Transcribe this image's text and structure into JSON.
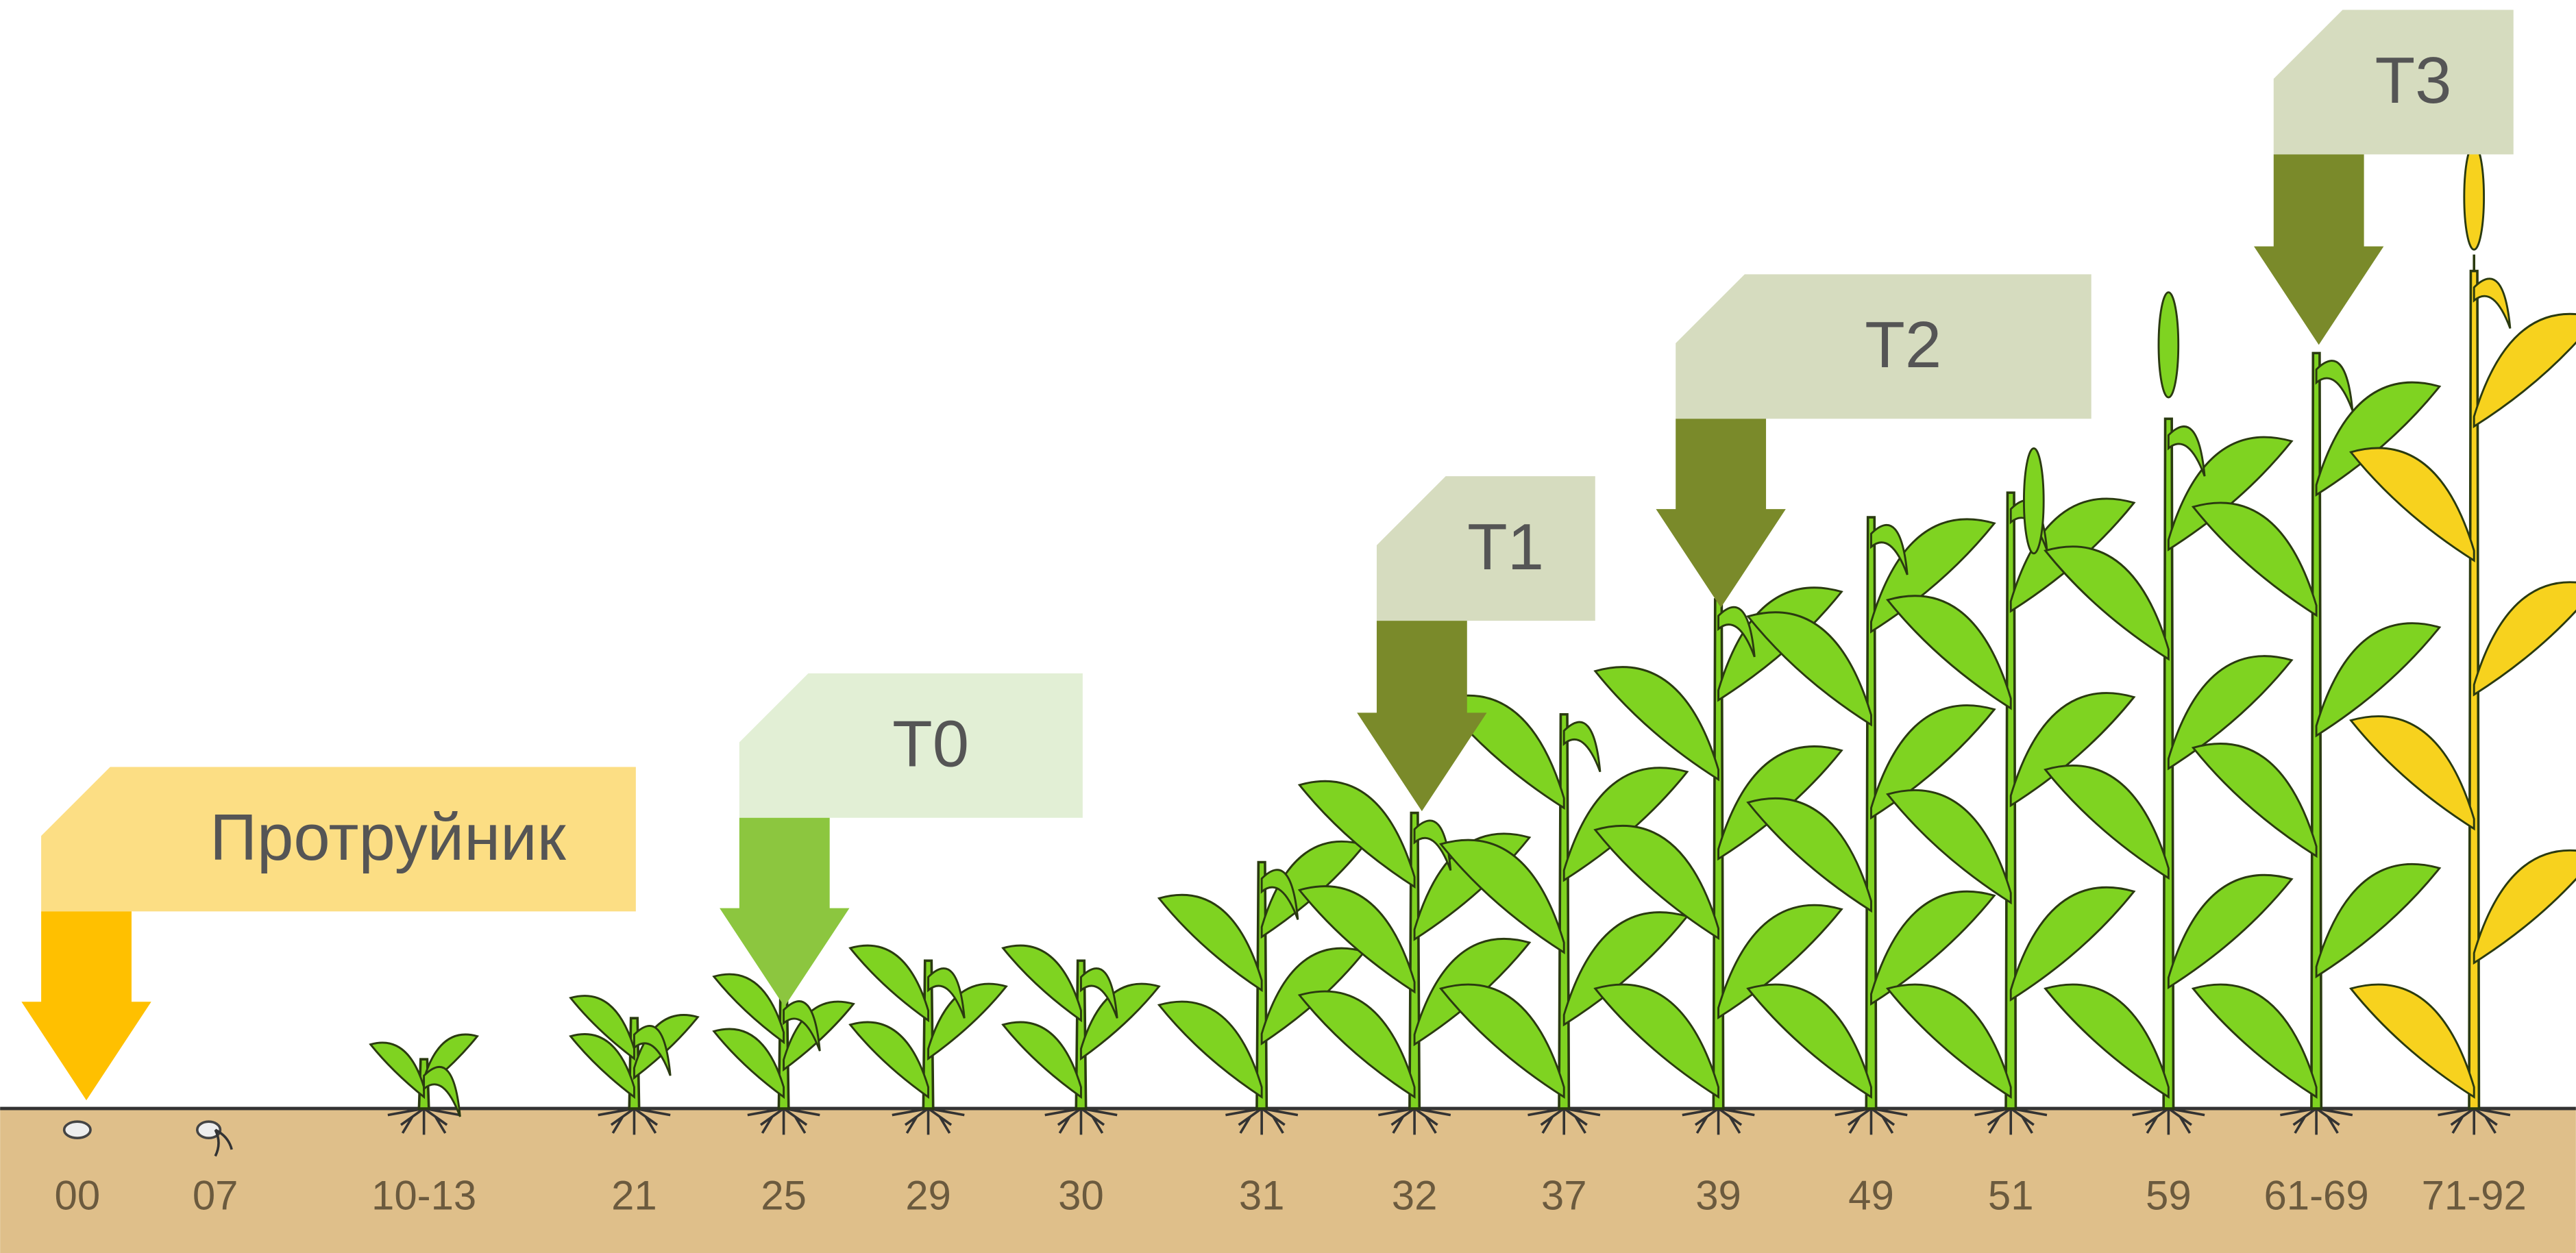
{
  "treatments": [
    {
      "label": "Протруйник"
    },
    {
      "label": "T0"
    },
    {
      "label": "T1"
    },
    {
      "label": "T2"
    },
    {
      "label": "T3"
    }
  ],
  "stages": [
    "00",
    "07",
    "10-13",
    "21",
    "25",
    "29",
    "30",
    "31",
    "32",
    "37",
    "39",
    "49",
    "51",
    "59",
    "61-69",
    "71-92"
  ]
}
